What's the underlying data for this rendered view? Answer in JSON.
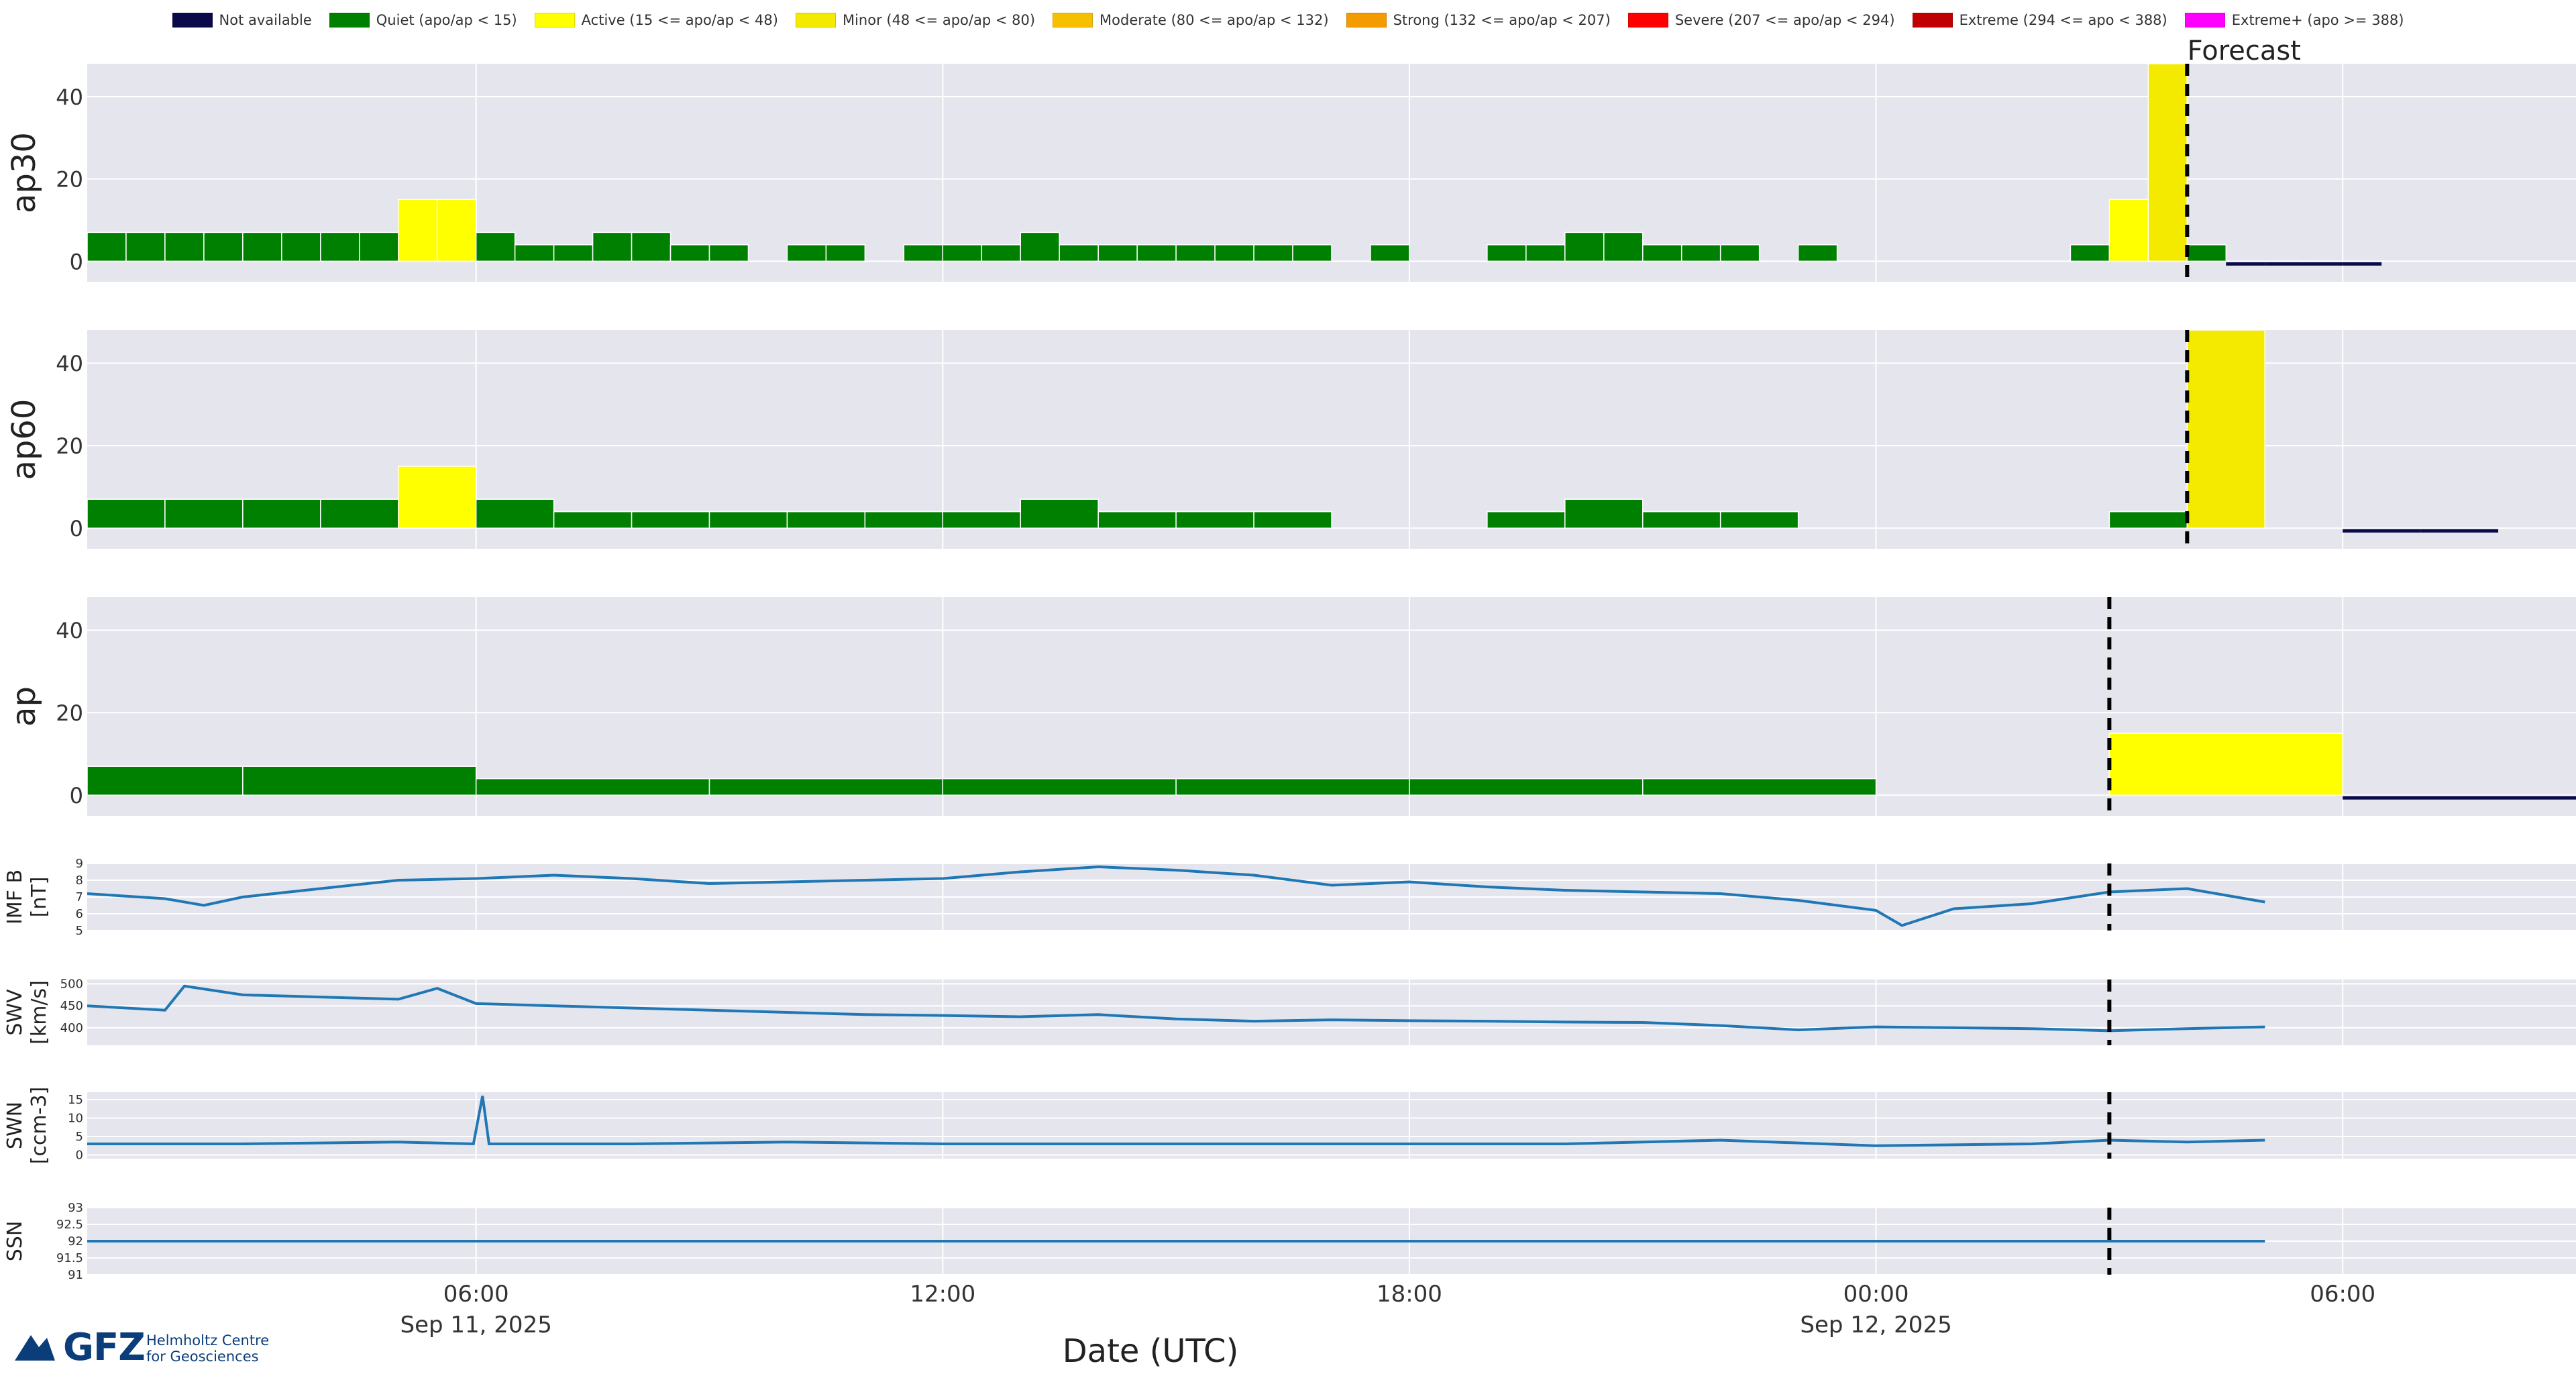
{
  "legend": [
    {
      "label": "Not available",
      "color": "#0a0a4a"
    },
    {
      "label": "Quiet (apo/ap < 15)",
      "color": "#008000"
    },
    {
      "label": "Active (15 <= apo/ap < 48)",
      "color": "#ffff00"
    },
    {
      "label": "Minor (48 <= apo/ap < 80)",
      "color": "#f4ea00"
    },
    {
      "label": "Moderate (80 <= apo/ap < 132)",
      "color": "#f6c000"
    },
    {
      "label": "Strong (132 <= apo/ap < 207)",
      "color": "#f49b00"
    },
    {
      "label": "Severe (207 <= apo/ap < 294)",
      "color": "#ff0000"
    },
    {
      "label": "Extreme (294 <= apo < 388)",
      "color": "#c00000"
    },
    {
      "label": "Extreme+ (apo >= 388)",
      "color": "#ff00ff"
    }
  ],
  "logo": {
    "name": "GFZ",
    "line1": "Helmholtz Centre",
    "line2": "for Geosciences"
  },
  "chart_data": {
    "type": "bar",
    "xlabel": "Date (UTC)",
    "xlim": [
      "2025-09-11 01:00",
      "2025-09-12 09:00"
    ],
    "x_ticks": [
      {
        "t": "2025-09-11 06:00",
        "label": "06:00",
        "sublabel": "Sep 11, 2025"
      },
      {
        "t": "2025-09-11 12:00",
        "label": "12:00",
        "sublabel": ""
      },
      {
        "t": "2025-09-11 18:00",
        "label": "18:00",
        "sublabel": ""
      },
      {
        "t": "2025-09-12 00:00",
        "label": "00:00",
        "sublabel": "Sep 12, 2025"
      },
      {
        "t": "2025-09-12 06:00",
        "label": "06:00",
        "sublabel": ""
      }
    ],
    "forecast_label": "Forecast",
    "grid": true,
    "panels": [
      {
        "ylabel": "ap30",
        "kind": "bar",
        "ylim": [
          -5,
          48
        ],
        "yticks": [
          "0",
          "20",
          "40"
        ],
        "ytick_values": [
          0,
          20,
          40
        ],
        "interval_hours": 0.5,
        "forecast_start": "2025-09-12 04:00",
        "bars": [
          {
            "t": "2025-09-11 01:00",
            "v": 7,
            "c": "q"
          },
          {
            "t": "2025-09-11 01:30",
            "v": 7,
            "c": "q"
          },
          {
            "t": "2025-09-11 02:00",
            "v": 7,
            "c": "q"
          },
          {
            "t": "2025-09-11 02:30",
            "v": 7,
            "c": "q"
          },
          {
            "t": "2025-09-11 03:00",
            "v": 7,
            "c": "q"
          },
          {
            "t": "2025-09-11 03:30",
            "v": 7,
            "c": "q"
          },
          {
            "t": "2025-09-11 04:00",
            "v": 7,
            "c": "q"
          },
          {
            "t": "2025-09-11 04:30",
            "v": 7,
            "c": "q"
          },
          {
            "t": "2025-09-11 05:00",
            "v": 15,
            "c": "a"
          },
          {
            "t": "2025-09-11 05:30",
            "v": 15,
            "c": "a"
          },
          {
            "t": "2025-09-11 06:00",
            "v": 7,
            "c": "q"
          },
          {
            "t": "2025-09-11 06:30",
            "v": 4,
            "c": "q"
          },
          {
            "t": "2025-09-11 07:00",
            "v": 4,
            "c": "q"
          },
          {
            "t": "2025-09-11 07:30",
            "v": 7,
            "c": "q"
          },
          {
            "t": "2025-09-11 08:00",
            "v": 7,
            "c": "q"
          },
          {
            "t": "2025-09-11 08:30",
            "v": 4,
            "c": "q"
          },
          {
            "t": "2025-09-11 09:00",
            "v": 4,
            "c": "q"
          },
          {
            "t": "2025-09-11 10:00",
            "v": 4,
            "c": "q"
          },
          {
            "t": "2025-09-11 10:30",
            "v": 4,
            "c": "q"
          },
          {
            "t": "2025-09-11 11:30",
            "v": 4,
            "c": "q"
          },
          {
            "t": "2025-09-11 12:00",
            "v": 4,
            "c": "q"
          },
          {
            "t": "2025-09-11 12:30",
            "v": 4,
            "c": "q"
          },
          {
            "t": "2025-09-11 13:00",
            "v": 7,
            "c": "q"
          },
          {
            "t": "2025-09-11 13:30",
            "v": 4,
            "c": "q"
          },
          {
            "t": "2025-09-11 14:00",
            "v": 4,
            "c": "q"
          },
          {
            "t": "2025-09-11 14:30",
            "v": 4,
            "c": "q"
          },
          {
            "t": "2025-09-11 15:00",
            "v": 4,
            "c": "q"
          },
          {
            "t": "2025-09-11 15:30",
            "v": 4,
            "c": "q"
          },
          {
            "t": "2025-09-11 16:00",
            "v": 4,
            "c": "q"
          },
          {
            "t": "2025-09-11 16:30",
            "v": 4,
            "c": "q"
          },
          {
            "t": "2025-09-11 17:30",
            "v": 4,
            "c": "q"
          },
          {
            "t": "2025-09-11 19:00",
            "v": 4,
            "c": "q"
          },
          {
            "t": "2025-09-11 19:30",
            "v": 4,
            "c": "q"
          },
          {
            "t": "2025-09-11 20:00",
            "v": 7,
            "c": "q"
          },
          {
            "t": "2025-09-11 20:30",
            "v": 7,
            "c": "q"
          },
          {
            "t": "2025-09-11 21:00",
            "v": 4,
            "c": "q"
          },
          {
            "t": "2025-09-11 21:30",
            "v": 4,
            "c": "q"
          },
          {
            "t": "2025-09-11 22:00",
            "v": 4,
            "c": "q"
          },
          {
            "t": "2025-09-11 23:00",
            "v": 4,
            "c": "q"
          },
          {
            "t": "2025-09-12 02:30",
            "v": 4,
            "c": "q"
          },
          {
            "t": "2025-09-12 03:00",
            "v": 15,
            "c": "a"
          },
          {
            "t": "2025-09-12 03:30",
            "v": 48,
            "c": "m"
          },
          {
            "t": "2025-09-12 04:00",
            "v": 4,
            "c": "q"
          },
          {
            "t": "2025-09-12 04:30",
            "v": 0,
            "c": "n"
          },
          {
            "t": "2025-09-12 05:00",
            "v": 0,
            "c": "n"
          },
          {
            "t": "2025-09-12 05:30",
            "v": 0,
            "c": "n"
          },
          {
            "t": "2025-09-12 06:00",
            "v": 0,
            "c": "n"
          }
        ]
      },
      {
        "ylabel": "ap60",
        "kind": "bar",
        "ylim": [
          -5,
          48
        ],
        "yticks": [
          "0",
          "20",
          "40"
        ],
        "ytick_values": [
          0,
          20,
          40
        ],
        "interval_hours": 1,
        "forecast_start": "2025-09-12 04:00",
        "bars": [
          {
            "t": "2025-09-11 01:00",
            "v": 7,
            "c": "q"
          },
          {
            "t": "2025-09-11 02:00",
            "v": 7,
            "c": "q"
          },
          {
            "t": "2025-09-11 03:00",
            "v": 7,
            "c": "q"
          },
          {
            "t": "2025-09-11 04:00",
            "v": 7,
            "c": "q"
          },
          {
            "t": "2025-09-11 05:00",
            "v": 15,
            "c": "a"
          },
          {
            "t": "2025-09-11 06:00",
            "v": 7,
            "c": "q"
          },
          {
            "t": "2025-09-11 07:00",
            "v": 4,
            "c": "q"
          },
          {
            "t": "2025-09-11 08:00",
            "v": 4,
            "c": "q"
          },
          {
            "t": "2025-09-11 09:00",
            "v": 4,
            "c": "q"
          },
          {
            "t": "2025-09-11 10:00",
            "v": 4,
            "c": "q"
          },
          {
            "t": "2025-09-11 11:00",
            "v": 4,
            "c": "q"
          },
          {
            "t": "2025-09-11 12:00",
            "v": 4,
            "c": "q"
          },
          {
            "t": "2025-09-11 13:00",
            "v": 7,
            "c": "q"
          },
          {
            "t": "2025-09-11 14:00",
            "v": 4,
            "c": "q"
          },
          {
            "t": "2025-09-11 15:00",
            "v": 4,
            "c": "q"
          },
          {
            "t": "2025-09-11 16:00",
            "v": 4,
            "c": "q"
          },
          {
            "t": "2025-09-11 19:00",
            "v": 4,
            "c": "q"
          },
          {
            "t": "2025-09-11 20:00",
            "v": 7,
            "c": "q"
          },
          {
            "t": "2025-09-11 21:00",
            "v": 4,
            "c": "q"
          },
          {
            "t": "2025-09-11 22:00",
            "v": 4,
            "c": "q"
          },
          {
            "t": "2025-09-12 03:00",
            "v": 4,
            "c": "q"
          },
          {
            "t": "2025-09-12 04:00",
            "v": 48,
            "c": "m"
          },
          {
            "t": "2025-09-12 06:00",
            "v": 0,
            "c": "n"
          },
          {
            "t": "2025-09-12 07:00",
            "v": 0,
            "c": "n"
          }
        ]
      },
      {
        "ylabel": "ap",
        "kind": "bar",
        "ylim": [
          -5,
          48
        ],
        "yticks": [
          "0",
          "20",
          "40"
        ],
        "ytick_values": [
          0,
          20,
          40
        ],
        "interval_hours": 3,
        "forecast_start": "2025-09-12 03:00",
        "bars": [
          {
            "t": "2025-09-11 00:00",
            "v": 7,
            "c": "q"
          },
          {
            "t": "2025-09-11 03:00",
            "v": 7,
            "c": "q"
          },
          {
            "t": "2025-09-11 06:00",
            "v": 4,
            "c": "q"
          },
          {
            "t": "2025-09-11 09:00",
            "v": 4,
            "c": "q"
          },
          {
            "t": "2025-09-11 12:00",
            "v": 4,
            "c": "q"
          },
          {
            "t": "2025-09-11 15:00",
            "v": 4,
            "c": "q"
          },
          {
            "t": "2025-09-11 18:00",
            "v": 4,
            "c": "q"
          },
          {
            "t": "2025-09-11 21:00",
            "v": 4,
            "c": "q"
          },
          {
            "t": "2025-09-12 03:00",
            "v": 15,
            "c": "a"
          },
          {
            "t": "2025-09-12 06:00",
            "v": 0,
            "c": "n"
          }
        ]
      },
      {
        "ylabel": "IMF B",
        "ylabel2": "[nT]",
        "kind": "line",
        "ylim": [
          5,
          9
        ],
        "yticks": [
          "5",
          "6",
          "7",
          "8",
          "9"
        ],
        "ytick_values": [
          5,
          6,
          7,
          8,
          9
        ],
        "forecast_start": "2025-09-12 03:00",
        "series_color": "#1f77b4",
        "points": [
          [
            "2025-09-11 01:00",
            7.2
          ],
          [
            "2025-09-11 02:00",
            6.9
          ],
          [
            "2025-09-11 02:30",
            6.5
          ],
          [
            "2025-09-11 03:00",
            7.0
          ],
          [
            "2025-09-11 04:00",
            7.5
          ],
          [
            "2025-09-11 05:00",
            8.0
          ],
          [
            "2025-09-11 06:00",
            8.1
          ],
          [
            "2025-09-11 07:00",
            8.3
          ],
          [
            "2025-09-11 08:00",
            8.1
          ],
          [
            "2025-09-11 09:00",
            7.8
          ],
          [
            "2025-09-11 10:00",
            7.9
          ],
          [
            "2025-09-11 11:00",
            8.0
          ],
          [
            "2025-09-11 12:00",
            8.1
          ],
          [
            "2025-09-11 13:00",
            8.5
          ],
          [
            "2025-09-11 14:00",
            8.8
          ],
          [
            "2025-09-11 15:00",
            8.6
          ],
          [
            "2025-09-11 16:00",
            8.3
          ],
          [
            "2025-09-11 17:00",
            7.7
          ],
          [
            "2025-09-11 18:00",
            7.9
          ],
          [
            "2025-09-11 19:00",
            7.6
          ],
          [
            "2025-09-11 20:00",
            7.4
          ],
          [
            "2025-09-11 21:00",
            7.3
          ],
          [
            "2025-09-11 22:00",
            7.2
          ],
          [
            "2025-09-11 23:00",
            6.8
          ],
          [
            "2025-09-12 00:00",
            6.2
          ],
          [
            "2025-09-12 00:20",
            5.3
          ],
          [
            "2025-09-12 01:00",
            6.3
          ],
          [
            "2025-09-12 02:00",
            6.6
          ],
          [
            "2025-09-12 03:00",
            7.3
          ],
          [
            "2025-09-12 04:00",
            7.5
          ],
          [
            "2025-09-12 05:00",
            6.7
          ]
        ]
      },
      {
        "ylabel": "SWV",
        "ylabel2": "[km/s]",
        "kind": "line",
        "ylim": [
          360,
          510
        ],
        "yticks": [
          "400",
          "450",
          "500"
        ],
        "ytick_values": [
          400,
          450,
          500
        ],
        "forecast_start": "2025-09-12 03:00",
        "series_color": "#1f77b4",
        "points": [
          [
            "2025-09-11 01:00",
            450
          ],
          [
            "2025-09-11 02:00",
            440
          ],
          [
            "2025-09-11 02:15",
            495
          ],
          [
            "2025-09-11 03:00",
            475
          ],
          [
            "2025-09-11 04:00",
            470
          ],
          [
            "2025-09-11 05:00",
            465
          ],
          [
            "2025-09-11 05:30",
            490
          ],
          [
            "2025-09-11 06:00",
            455
          ],
          [
            "2025-09-11 07:00",
            450
          ],
          [
            "2025-09-11 08:00",
            445
          ],
          [
            "2025-09-11 09:00",
            440
          ],
          [
            "2025-09-11 10:00",
            435
          ],
          [
            "2025-09-11 11:00",
            430
          ],
          [
            "2025-09-11 12:00",
            428
          ],
          [
            "2025-09-11 13:00",
            425
          ],
          [
            "2025-09-11 14:00",
            430
          ],
          [
            "2025-09-11 15:00",
            420
          ],
          [
            "2025-09-11 16:00",
            415
          ],
          [
            "2025-09-11 17:00",
            418
          ],
          [
            "2025-09-11 18:00",
            416
          ],
          [
            "2025-09-11 19:00",
            415
          ],
          [
            "2025-09-11 20:00",
            413
          ],
          [
            "2025-09-11 21:00",
            412
          ],
          [
            "2025-09-11 22:00",
            405
          ],
          [
            "2025-09-11 23:00",
            395
          ],
          [
            "2025-09-12 00:00",
            402
          ],
          [
            "2025-09-12 01:00",
            400
          ],
          [
            "2025-09-12 02:00",
            398
          ],
          [
            "2025-09-12 03:00",
            393
          ],
          [
            "2025-09-12 04:00",
            398
          ],
          [
            "2025-09-12 05:00",
            402
          ]
        ]
      },
      {
        "ylabel": "SWN",
        "ylabel2": "[ccm-3]",
        "kind": "line",
        "ylim": [
          -1,
          17
        ],
        "yticks": [
          "0",
          "5",
          "10",
          "15"
        ],
        "ytick_values": [
          0,
          5,
          10,
          15
        ],
        "forecast_start": "2025-09-12 03:00",
        "series_color": "#1f77b4",
        "points": [
          [
            "2025-09-11 01:00",
            3
          ],
          [
            "2025-09-11 03:00",
            3
          ],
          [
            "2025-09-11 05:00",
            3.5
          ],
          [
            "2025-09-11 05:58",
            3
          ],
          [
            "2025-09-11 06:05",
            16
          ],
          [
            "2025-09-11 06:10",
            3
          ],
          [
            "2025-09-11 08:00",
            3
          ],
          [
            "2025-09-11 10:00",
            3.5
          ],
          [
            "2025-09-11 12:00",
            3
          ],
          [
            "2025-09-11 14:00",
            3
          ],
          [
            "2025-09-11 16:00",
            3
          ],
          [
            "2025-09-11 18:00",
            3
          ],
          [
            "2025-09-11 20:00",
            3
          ],
          [
            "2025-09-11 22:00",
            4
          ],
          [
            "2025-09-12 00:00",
            2.5
          ],
          [
            "2025-09-12 02:00",
            3
          ],
          [
            "2025-09-12 03:00",
            4
          ],
          [
            "2025-09-12 04:00",
            3.5
          ],
          [
            "2025-09-12 05:00",
            4
          ]
        ]
      },
      {
        "ylabel": "SSN",
        "ylabel2": "",
        "kind": "line",
        "ylim": [
          91,
          93
        ],
        "yticks": [
          "91",
          "91.5",
          "92",
          "92.5",
          "93"
        ],
        "ytick_values": [
          91,
          91.5,
          92,
          92.5,
          93
        ],
        "forecast_start": "2025-09-12 03:00",
        "series_color": "#1f77b4",
        "points": [
          [
            "2025-09-11 01:00",
            92
          ],
          [
            "2025-09-12 05:00",
            92
          ]
        ]
      }
    ]
  }
}
